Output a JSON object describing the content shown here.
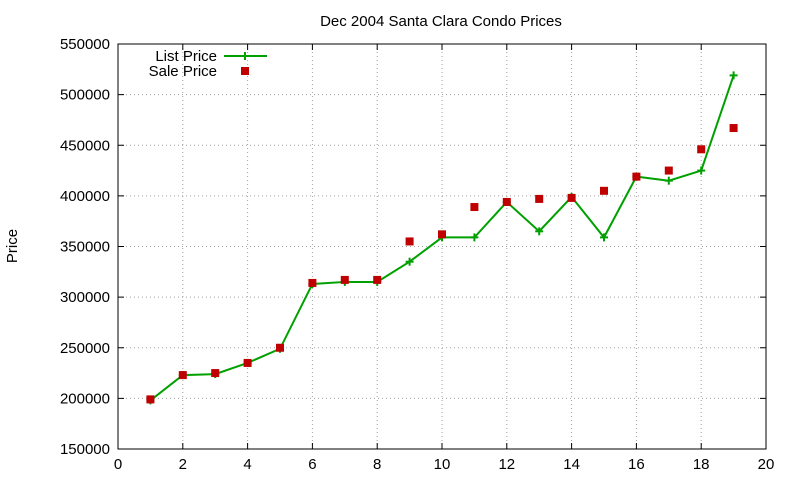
{
  "chart_data": {
    "type": "line",
    "title": "Dec 2004 Santa Clara Condo Prices",
    "xlabel": "",
    "ylabel": "Price",
    "xlim": [
      0,
      20
    ],
    "ylim": [
      150000,
      550000
    ],
    "xticks": [
      0,
      2,
      4,
      6,
      8,
      10,
      12,
      14,
      16,
      18,
      20
    ],
    "yticks": [
      150000,
      200000,
      250000,
      300000,
      350000,
      400000,
      450000,
      500000,
      550000
    ],
    "xtick_labels": [
      "0",
      "2",
      "4",
      "6",
      "8",
      "10",
      "12",
      "14",
      "16",
      "18",
      "20"
    ],
    "ytick_labels": [
      "150000",
      "200000",
      "250000",
      "300000",
      "350000",
      "400000",
      "450000",
      "500000",
      "550000"
    ],
    "grid": true,
    "legend_position": "top-left",
    "x": [
      1,
      2,
      3,
      4,
      5,
      6,
      7,
      8,
      9,
      10,
      11,
      12,
      13,
      14,
      15,
      16,
      17,
      18,
      19
    ],
    "series": [
      {
        "name": "List Price",
        "style": "line-with-plus-markers",
        "color": "#00a000",
        "values": [
          198000,
          223000,
          224000,
          235000,
          249000,
          313000,
          315000,
          315000,
          335000,
          359000,
          359000,
          394000,
          365000,
          399000,
          359000,
          419000,
          415000,
          425000,
          519000
        ]
      },
      {
        "name": "Sale Price",
        "style": "square-markers",
        "color": "#c00000",
        "values": [
          199000,
          223000,
          225000,
          235000,
          250000,
          314000,
          317000,
          317000,
          355000,
          362000,
          389000,
          394000,
          397000,
          398000,
          405000,
          419000,
          425000,
          446000,
          467000
        ]
      }
    ]
  }
}
